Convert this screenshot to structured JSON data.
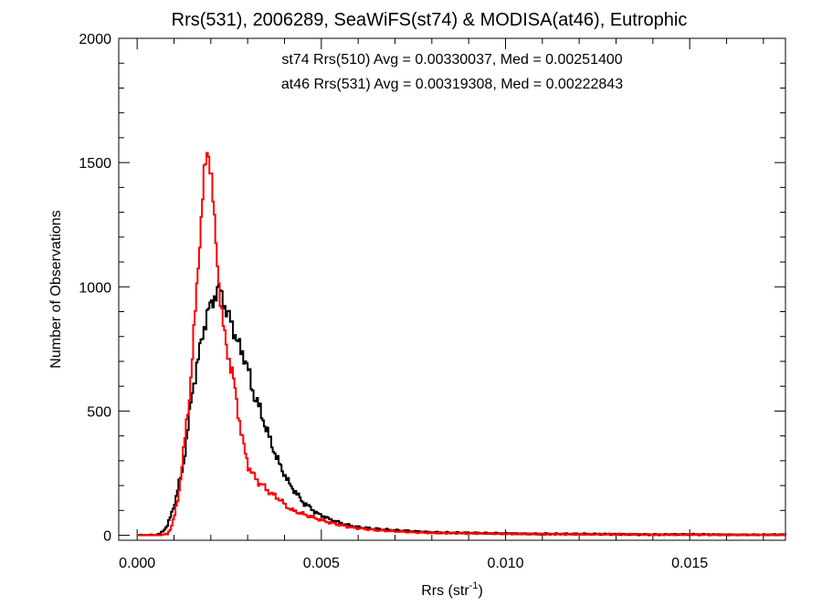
{
  "chart_data": {
    "type": "line",
    "title": "Rrs(531), 2006289, SeaWiFS(st74) & MODISA(at46), Eutrophic",
    "xlabel": "Rrs (str",
    "xlabel_sup": "-1",
    "xlabel_end": ")",
    "ylabel": "Number of Observations",
    "xlim": [
      -0.0005,
      0.0176
    ],
    "ylim": [
      -20,
      2000
    ],
    "x_ticks": [
      0.0,
      0.005,
      0.01,
      0.015
    ],
    "x_tick_labels": [
      "0.000",
      "0.005",
      "0.010",
      "0.015"
    ],
    "y_ticks": [
      0,
      500,
      1000,
      1500,
      2000
    ],
    "y_tick_labels": [
      "0",
      "500",
      "1000",
      "1500",
      "2000"
    ],
    "annotations": [
      {
        "text": "st74 Rrs(510) Avg = 0.00330037, Med = 0.00251400",
        "color": "#000000"
      },
      {
        "text": "at46 Rrs(531) Avg = 0.00319308, Med = 0.00222843",
        "color": "#ff0000"
      }
    ],
    "series": [
      {
        "color": "#000000",
        "x": [
          0.0,
          0.0004,
          0.0006,
          0.0007,
          0.0008,
          0.0009,
          0.001,
          0.0011,
          0.0012,
          0.0013,
          0.0014,
          0.0015,
          0.0016,
          0.0017,
          0.0018,
          0.0019,
          0.002,
          0.0021,
          0.0022,
          0.0023,
          0.0024,
          0.0025,
          0.0026,
          0.0027,
          0.0028,
          0.0029,
          0.003,
          0.0031,
          0.0032,
          0.0033,
          0.0034,
          0.0035,
          0.0036,
          0.0037,
          0.0038,
          0.0039,
          0.004,
          0.0041,
          0.0042,
          0.0043,
          0.0044,
          0.0045,
          0.0046,
          0.0047,
          0.0048,
          0.0049,
          0.005,
          0.0052,
          0.0054,
          0.0056,
          0.0058,
          0.006,
          0.0065,
          0.007,
          0.0075,
          0.008,
          0.009,
          0.01,
          0.011,
          0.012,
          0.013,
          0.014,
          0.015,
          0.016,
          0.017,
          0.0176
        ],
        "y": [
          0,
          0,
          5,
          20,
          40,
          80,
          130,
          200,
          250,
          360,
          480,
          600,
          680,
          760,
          840,
          900,
          930,
          970,
          990,
          960,
          900,
          870,
          830,
          780,
          740,
          720,
          660,
          590,
          550,
          510,
          470,
          420,
          380,
          340,
          300,
          270,
          240,
          210,
          190,
          170,
          150,
          130,
          120,
          110,
          95,
          85,
          80,
          65,
          55,
          45,
          38,
          32,
          25,
          20,
          16,
          12,
          9,
          7,
          6,
          5,
          4,
          3,
          3,
          2,
          2,
          2
        ]
      },
      {
        "color": "#ff0000",
        "x": [
          0.0,
          0.0006,
          0.0008,
          0.0009,
          0.001,
          0.0011,
          0.0012,
          0.0013,
          0.0014,
          0.0015,
          0.0016,
          0.0017,
          0.0018,
          0.0019,
          0.002,
          0.0021,
          0.0022,
          0.0023,
          0.0024,
          0.0025,
          0.0026,
          0.0027,
          0.0028,
          0.0029,
          0.003,
          0.0031,
          0.0032,
          0.0033,
          0.0034,
          0.0035,
          0.0036,
          0.0037,
          0.0038,
          0.0039,
          0.004,
          0.0041,
          0.0042,
          0.0043,
          0.0044,
          0.0045,
          0.0046,
          0.0047,
          0.0048,
          0.0049,
          0.005,
          0.0052,
          0.0054,
          0.0056,
          0.0058,
          0.006,
          0.0065,
          0.007,
          0.0075,
          0.008,
          0.009,
          0.01,
          0.011,
          0.012,
          0.013,
          0.014,
          0.015,
          0.016,
          0.017,
          0.0176
        ],
        "y": [
          0,
          0,
          5,
          30,
          80,
          160,
          280,
          420,
          560,
          760,
          1000,
          1230,
          1450,
          1560,
          1440,
          1210,
          1020,
          860,
          760,
          700,
          620,
          520,
          420,
          340,
          280,
          250,
          230,
          210,
          200,
          185,
          170,
          160,
          150,
          140,
          120,
          110,
          100,
          95,
          90,
          85,
          80,
          75,
          70,
          65,
          60,
          52,
          45,
          38,
          32,
          28,
          20,
          16,
          12,
          10,
          8,
          6,
          5,
          4,
          4,
          3,
          3,
          2,
          2,
          2
        ]
      }
    ],
    "grid": false,
    "legend": "none"
  }
}
